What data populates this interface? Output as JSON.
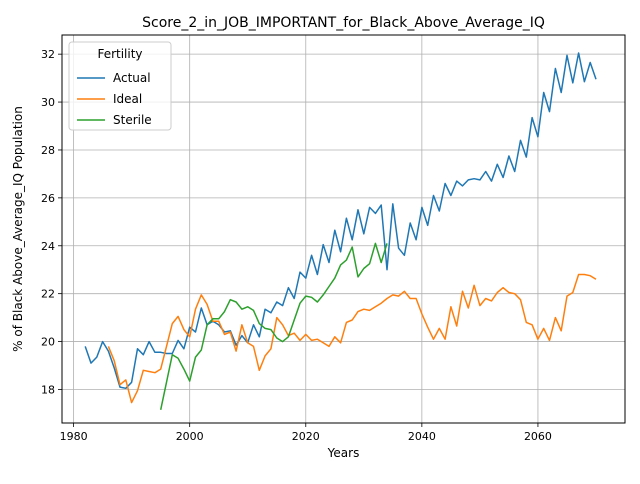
{
  "chart_data": {
    "type": "line",
    "title": "Score_2_in_JOB_IMPORTANT_for_Black_Above_Average_IQ",
    "xlabel": "Years",
    "ylabel": "% of Black Above_Average_IQ Population",
    "xlim": [
      1978,
      2075
    ],
    "ylim": [
      16.6,
      32.8
    ],
    "xticks": [
      1980,
      2000,
      2020,
      2040,
      2060
    ],
    "yticks": [
      18,
      20,
      22,
      24,
      26,
      28,
      30,
      32
    ],
    "grid": true,
    "legend": {
      "title": "Fertility",
      "placement": "upper left"
    },
    "series": [
      {
        "name": "Actual",
        "color": "#1f77b4",
        "x": [
          1982,
          1983,
          1984,
          1985,
          1986,
          1987,
          1988,
          1989,
          1990,
          1991,
          1992,
          1993,
          1994,
          1995,
          1996,
          1997,
          1998,
          1999,
          2000,
          2001,
          2002,
          2003,
          2004,
          2005,
          2006,
          2007,
          2008,
          2009,
          2010,
          2011,
          2012,
          2013,
          2014,
          2015,
          2016,
          2017,
          2018,
          2019,
          2020,
          2021,
          2022,
          2023,
          2024,
          2025,
          2026,
          2027,
          2028,
          2029,
          2030,
          2031,
          2032,
          2033,
          2034,
          2035,
          2036,
          2037,
          2038,
          2039,
          2040,
          2041,
          2042,
          2043,
          2044,
          2045,
          2046,
          2047,
          2048,
          2049,
          2050,
          2051,
          2052,
          2053,
          2054,
          2055,
          2056,
          2057,
          2058,
          2059,
          2060,
          2061,
          2062,
          2063,
          2064,
          2065,
          2066,
          2067,
          2068,
          2069,
          2070
        ],
        "y": [
          19.8,
          19.1,
          19.35,
          20.0,
          19.6,
          18.9,
          18.1,
          18.05,
          18.3,
          19.7,
          19.45,
          20.0,
          19.55,
          19.55,
          19.5,
          19.5,
          20.05,
          19.7,
          20.6,
          20.4,
          21.4,
          20.7,
          20.85,
          20.7,
          20.4,
          20.45,
          19.85,
          20.25,
          19.95,
          20.7,
          20.2,
          21.35,
          21.2,
          21.65,
          21.5,
          22.25,
          21.8,
          22.9,
          22.65,
          23.6,
          22.8,
          24.05,
          23.3,
          24.65,
          23.75,
          25.15,
          24.25,
          25.5,
          24.5,
          25.6,
          25.35,
          25.7,
          23.0,
          25.75,
          23.9,
          23.6,
          24.95,
          24.25,
          25.6,
          24.85,
          26.1,
          25.45,
          26.6,
          26.1,
          26.7,
          26.5,
          26.75,
          26.8,
          26.75,
          27.1,
          26.7,
          27.4,
          26.85,
          27.75,
          27.1,
          28.4,
          27.7,
          29.35,
          28.55,
          30.4,
          29.6,
          31.4,
          30.4,
          31.95,
          30.8,
          32.05,
          30.85,
          31.65,
          30.95
        ]
      },
      {
        "name": "Ideal",
        "color": "#ff7f0e",
        "x": [
          1986,
          1987,
          1988,
          1989,
          1990,
          1991,
          1992,
          1993,
          1994,
          1995,
          1996,
          1997,
          1998,
          1999,
          2000,
          2001,
          2002,
          2003,
          2004,
          2005,
          2006,
          2007,
          2008,
          2009,
          2010,
          2011,
          2012,
          2013,
          2014,
          2015,
          2016,
          2017,
          2018,
          2019,
          2020,
          2021,
          2022,
          2023,
          2024,
          2025,
          2026,
          2027,
          2028,
          2029,
          2030,
          2031,
          2032,
          2033,
          2034,
          2035,
          2036,
          2037,
          2038,
          2039,
          2040,
          2041,
          2042,
          2043,
          2044,
          2045,
          2046,
          2047,
          2048,
          2049,
          2050,
          2051,
          2052,
          2053,
          2054,
          2055,
          2056,
          2057,
          2058,
          2059,
          2060,
          2061,
          2062,
          2063,
          2064,
          2065,
          2066,
          2067,
          2068,
          2069,
          2070
        ],
        "y": [
          19.8,
          19.2,
          18.2,
          18.4,
          17.45,
          17.95,
          18.8,
          18.75,
          18.7,
          18.85,
          19.8,
          20.75,
          21.05,
          20.5,
          20.2,
          21.35,
          21.95,
          21.55,
          20.85,
          20.85,
          20.3,
          20.4,
          19.6,
          20.7,
          19.95,
          19.8,
          18.8,
          19.4,
          19.7,
          21.0,
          20.7,
          20.25,
          20.35,
          20.05,
          20.3,
          20.05,
          20.1,
          19.95,
          19.8,
          20.2,
          19.95,
          20.8,
          20.9,
          21.25,
          21.35,
          21.3,
          21.45,
          21.6,
          21.8,
          21.95,
          21.9,
          22.1,
          21.8,
          21.8,
          21.15,
          20.6,
          20.1,
          20.55,
          20.1,
          21.45,
          20.65,
          22.1,
          21.4,
          22.35,
          21.5,
          21.8,
          21.7,
          22.05,
          22.25,
          22.05,
          22.0,
          21.75,
          20.8,
          20.7,
          20.1,
          20.55,
          20.05,
          21.0,
          20.45,
          21.9,
          22.05,
          22.8,
          22.8,
          22.75,
          22.6
        ]
      },
      {
        "name": "Sterile",
        "color": "#2ca02c",
        "x": [
          1995,
          1996,
          1997,
          1998,
          1999,
          2000,
          2001,
          2002,
          2003,
          2004,
          2005,
          2006,
          2007,
          2008,
          2009,
          2010,
          2011,
          2012,
          2013,
          2014,
          2015,
          2016,
          2017,
          2018,
          2019,
          2020,
          2021,
          2022,
          2023,
          2024,
          2025,
          2026,
          2027,
          2028,
          2029,
          2030,
          2031,
          2032,
          2033,
          2034
        ],
        "y": [
          17.15,
          18.3,
          19.45,
          19.3,
          18.85,
          18.35,
          19.35,
          19.65,
          20.7,
          20.95,
          20.95,
          21.25,
          21.75,
          21.65,
          21.35,
          21.45,
          21.3,
          20.75,
          20.55,
          20.5,
          20.15,
          20.0,
          20.2,
          20.9,
          21.6,
          21.9,
          21.85,
          21.65,
          21.95,
          22.3,
          22.65,
          23.2,
          23.4,
          23.95,
          22.7,
          23.05,
          23.25,
          24.1,
          23.3,
          24.1
        ]
      }
    ]
  }
}
